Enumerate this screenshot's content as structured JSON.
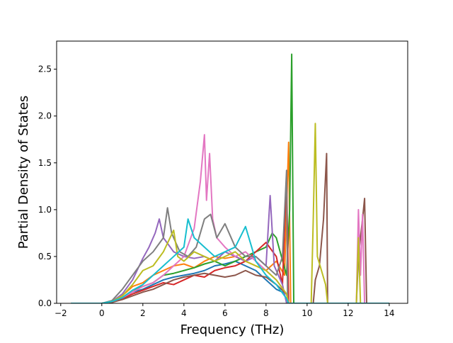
{
  "chart_data": {
    "type": "line",
    "title": "",
    "xlabel": "Frequency (THz)",
    "ylabel": "Partial Density of States",
    "xlim": [
      -2.2,
      14.9
    ],
    "ylim": [
      0.0,
      2.8
    ],
    "xticks": [
      -2,
      0,
      2,
      4,
      6,
      8,
      10,
      12,
      14
    ],
    "xtick_labels": [
      "−2",
      "0",
      "2",
      "4",
      "6",
      "8",
      "10",
      "12",
      "14"
    ],
    "yticks": [
      0.0,
      0.5,
      1.0,
      1.5,
      2.0,
      2.5
    ],
    "ytick_labels": [
      "0.0",
      "0.5",
      "1.0",
      "1.5",
      "2.0",
      "2.5"
    ],
    "grid": false,
    "legend": "none",
    "series": [
      {
        "color": "#1f77b4",
        "points": [
          [
            -1.5,
            0
          ],
          [
            0,
            0
          ],
          [
            0.5,
            0.02
          ],
          [
            1,
            0.06
          ],
          [
            1.5,
            0.12
          ],
          [
            2,
            0.15
          ],
          [
            2.5,
            0.2
          ],
          [
            3,
            0.25
          ],
          [
            3.5,
            0.28
          ],
          [
            4,
            0.3
          ],
          [
            4.5,
            0.32
          ],
          [
            5,
            0.35
          ],
          [
            5.5,
            0.4
          ],
          [
            6,
            0.42
          ],
          [
            6.5,
            0.45
          ],
          [
            7,
            0.4
          ],
          [
            7.5,
            0.35
          ],
          [
            8,
            0.25
          ],
          [
            8.5,
            0.15
          ],
          [
            9,
            0.1
          ],
          [
            9.1,
            0
          ],
          [
            14,
            0
          ]
        ]
      },
      {
        "color": "#ff7f0e",
        "points": [
          [
            -1.5,
            0
          ],
          [
            0,
            0
          ],
          [
            0.5,
            0.02
          ],
          [
            1,
            0.08
          ],
          [
            1.5,
            0.18
          ],
          [
            2,
            0.22
          ],
          [
            2.5,
            0.3
          ],
          [
            3,
            0.35
          ],
          [
            3.5,
            0.4
          ],
          [
            4,
            0.42
          ],
          [
            4.5,
            0.38
          ],
          [
            5,
            0.45
          ],
          [
            5.5,
            0.5
          ],
          [
            6,
            0.48
          ],
          [
            6.5,
            0.5
          ],
          [
            7,
            0.45
          ],
          [
            7.5,
            0.4
          ],
          [
            8,
            0.35
          ],
          [
            8.5,
            0.45
          ],
          [
            8.9,
            0.3
          ],
          [
            9.1,
            1.72
          ],
          [
            9.2,
            0
          ],
          [
            14,
            0
          ]
        ]
      },
      {
        "color": "#2ca02c",
        "points": [
          [
            -1.5,
            0
          ],
          [
            0,
            0
          ],
          [
            0.5,
            0.02
          ],
          [
            1,
            0.06
          ],
          [
            1.5,
            0.14
          ],
          [
            2,
            0.18
          ],
          [
            2.5,
            0.22
          ],
          [
            3,
            0.3
          ],
          [
            3.5,
            0.32
          ],
          [
            4,
            0.35
          ],
          [
            4.5,
            0.38
          ],
          [
            5,
            0.42
          ],
          [
            5.5,
            0.45
          ],
          [
            6,
            0.4
          ],
          [
            6.5,
            0.45
          ],
          [
            7,
            0.5
          ],
          [
            7.5,
            0.55
          ],
          [
            8,
            0.6
          ],
          [
            8.3,
            0.75
          ],
          [
            8.5,
            0.7
          ],
          [
            9,
            0.3
          ],
          [
            9.15,
            1.0
          ],
          [
            9.25,
            2.66
          ],
          [
            9.35,
            0
          ],
          [
            14,
            0
          ]
        ]
      },
      {
        "color": "#d62728",
        "points": [
          [
            -1.5,
            0
          ],
          [
            0,
            0
          ],
          [
            0.5,
            0.01
          ],
          [
            1,
            0.05
          ],
          [
            1.5,
            0.1
          ],
          [
            2,
            0.14
          ],
          [
            2.5,
            0.18
          ],
          [
            3,
            0.22
          ],
          [
            3.5,
            0.2
          ],
          [
            4,
            0.25
          ],
          [
            4.5,
            0.3
          ],
          [
            5,
            0.28
          ],
          [
            5.5,
            0.35
          ],
          [
            6,
            0.38
          ],
          [
            6.5,
            0.4
          ],
          [
            7,
            0.45
          ],
          [
            7.5,
            0.55
          ],
          [
            8,
            0.65
          ],
          [
            8.5,
            0.5
          ],
          [
            8.8,
            0.2
          ],
          [
            9,
            1.35
          ],
          [
            9.1,
            0
          ],
          [
            14,
            0
          ]
        ]
      },
      {
        "color": "#9467bd",
        "points": [
          [
            -1.5,
            0
          ],
          [
            0,
            0
          ],
          [
            0.5,
            0.02
          ],
          [
            1,
            0.1
          ],
          [
            1.5,
            0.25
          ],
          [
            2,
            0.48
          ],
          [
            2.3,
            0.6
          ],
          [
            2.6,
            0.75
          ],
          [
            2.8,
            0.9
          ],
          [
            3,
            0.7
          ],
          [
            3.5,
            0.55
          ],
          [
            4,
            0.5
          ],
          [
            4.5,
            0.48
          ],
          [
            5,
            0.5
          ],
          [
            5.5,
            0.45
          ],
          [
            6,
            0.55
          ],
          [
            6.5,
            0.5
          ],
          [
            7,
            0.45
          ],
          [
            7.5,
            0.5
          ],
          [
            8,
            0.4
          ],
          [
            8.2,
            1.15
          ],
          [
            8.4,
            0.4
          ],
          [
            8.8,
            0.2
          ],
          [
            9,
            0
          ],
          [
            14,
            0
          ]
        ]
      },
      {
        "color": "#8c564b",
        "points": [
          [
            -1.5,
            0
          ],
          [
            0,
            0
          ],
          [
            0.5,
            0.01
          ],
          [
            1,
            0.04
          ],
          [
            1.5,
            0.08
          ],
          [
            2,
            0.12
          ],
          [
            2.5,
            0.15
          ],
          [
            3,
            0.2
          ],
          [
            3.5,
            0.25
          ],
          [
            4,
            0.28
          ],
          [
            4.5,
            0.3
          ],
          [
            5,
            0.32
          ],
          [
            5.5,
            0.3
          ],
          [
            6,
            0.28
          ],
          [
            6.5,
            0.3
          ],
          [
            7,
            0.35
          ],
          [
            7.5,
            0.3
          ],
          [
            8,
            0.28
          ],
          [
            8.5,
            0.2
          ],
          [
            9,
            0.1
          ],
          [
            9.1,
            0
          ],
          [
            10.3,
            0
          ],
          [
            10.4,
            0.25
          ],
          [
            10.6,
            0.4
          ],
          [
            10.8,
            0.9
          ],
          [
            10.95,
            1.6
          ],
          [
            11,
            0
          ],
          [
            12.4,
            0
          ],
          [
            12.5,
            0.5
          ],
          [
            12.7,
            0.9
          ],
          [
            12.8,
            1.12
          ],
          [
            12.9,
            0
          ],
          [
            14,
            0
          ]
        ]
      },
      {
        "color": "#e377c2",
        "points": [
          [
            -1.5,
            0
          ],
          [
            0,
            0
          ],
          [
            0.5,
            0.02
          ],
          [
            1,
            0.06
          ],
          [
            1.5,
            0.12
          ],
          [
            2,
            0.18
          ],
          [
            2.5,
            0.22
          ],
          [
            3,
            0.3
          ],
          [
            3.5,
            0.4
          ],
          [
            4,
            0.5
          ],
          [
            4.5,
            0.8
          ],
          [
            4.8,
            1.3
          ],
          [
            5,
            1.8
          ],
          [
            5.1,
            1.1
          ],
          [
            5.25,
            1.6
          ],
          [
            5.4,
            0.9
          ],
          [
            5.6,
            0.7
          ],
          [
            6,
            0.6
          ],
          [
            6.5,
            0.5
          ],
          [
            7,
            0.55
          ],
          [
            7.5,
            0.45
          ],
          [
            8,
            0.35
          ],
          [
            8.5,
            0.25
          ],
          [
            9,
            0.1
          ],
          [
            9.1,
            0
          ],
          [
            12.4,
            0
          ],
          [
            12.5,
            1.0
          ],
          [
            12.6,
            0.3
          ],
          [
            12.7,
            0.95
          ],
          [
            12.8,
            0
          ],
          [
            14,
            0
          ]
        ]
      },
      {
        "color": "#7f7f7f",
        "points": [
          [
            -1.5,
            0
          ],
          [
            0,
            0
          ],
          [
            0.5,
            0.03
          ],
          [
            1,
            0.15
          ],
          [
            1.5,
            0.3
          ],
          [
            2,
            0.45
          ],
          [
            2.5,
            0.55
          ],
          [
            3,
            0.7
          ],
          [
            3.2,
            1.02
          ],
          [
            3.4,
            0.75
          ],
          [
            3.8,
            0.55
          ],
          [
            4.2,
            0.5
          ],
          [
            4.6,
            0.6
          ],
          [
            5,
            0.9
          ],
          [
            5.3,
            0.95
          ],
          [
            5.6,
            0.7
          ],
          [
            6,
            0.85
          ],
          [
            6.5,
            0.6
          ],
          [
            7,
            0.5
          ],
          [
            7.5,
            0.5
          ],
          [
            8,
            0.4
          ],
          [
            8.5,
            0.3
          ],
          [
            8.8,
            0.5
          ],
          [
            9,
            1.42
          ],
          [
            9.05,
            0
          ],
          [
            14,
            0
          ]
        ]
      },
      {
        "color": "#bcbd22",
        "points": [
          [
            -1.5,
            0
          ],
          [
            0,
            0
          ],
          [
            0.5,
            0.02
          ],
          [
            1,
            0.08
          ],
          [
            1.5,
            0.2
          ],
          [
            2,
            0.35
          ],
          [
            2.5,
            0.4
          ],
          [
            3,
            0.55
          ],
          [
            3.5,
            0.78
          ],
          [
            3.7,
            0.5
          ],
          [
            4,
            0.45
          ],
          [
            4.5,
            0.55
          ],
          [
            5,
            0.5
          ],
          [
            5.5,
            0.45
          ],
          [
            6,
            0.5
          ],
          [
            6.5,
            0.55
          ],
          [
            7,
            0.45
          ],
          [
            7.5,
            0.4
          ],
          [
            8,
            0.35
          ],
          [
            8.5,
            0.25
          ],
          [
            9,
            0.1
          ],
          [
            9.1,
            0
          ],
          [
            10.2,
            0
          ],
          [
            10.3,
            0.9
          ],
          [
            10.4,
            1.92
          ],
          [
            10.5,
            0.5
          ],
          [
            10.7,
            0.35
          ],
          [
            10.9,
            0.2
          ],
          [
            11,
            0
          ],
          [
            12.4,
            0
          ],
          [
            12.5,
            0.7
          ],
          [
            12.6,
            0
          ],
          [
            14,
            0
          ]
        ]
      },
      {
        "color": "#17becf",
        "points": [
          [
            -1.5,
            0
          ],
          [
            0,
            0
          ],
          [
            0.5,
            0.02
          ],
          [
            1,
            0.06
          ],
          [
            1.5,
            0.14
          ],
          [
            2,
            0.2
          ],
          [
            2.5,
            0.3
          ],
          [
            3,
            0.4
          ],
          [
            3.5,
            0.5
          ],
          [
            4,
            0.6
          ],
          [
            4.2,
            0.9
          ],
          [
            4.5,
            0.7
          ],
          [
            5,
            0.6
          ],
          [
            5.5,
            0.5
          ],
          [
            6,
            0.55
          ],
          [
            6.5,
            0.6
          ],
          [
            7,
            0.82
          ],
          [
            7.3,
            0.6
          ],
          [
            7.5,
            0.45
          ],
          [
            8,
            0.3
          ],
          [
            8.5,
            0.2
          ],
          [
            9,
            0.05
          ],
          [
            9.1,
            0
          ],
          [
            14,
            0
          ]
        ]
      }
    ]
  }
}
